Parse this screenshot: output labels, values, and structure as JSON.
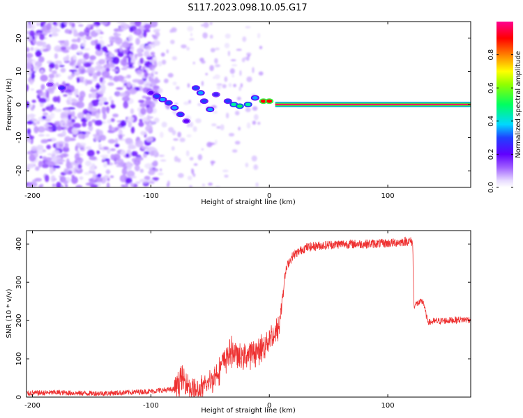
{
  "title": "S117.2023.098.10.05.G17",
  "chart_data": [
    {
      "type": "heatmap",
      "name": "spectrogram",
      "title": "S117.2023.098.10.05.G17",
      "xlabel": "Height of straight line (km)",
      "ylabel": "Frequency (Hz)",
      "xlim": [
        -205,
        170
      ],
      "ylim": [
        -25,
        25
      ],
      "xticks": [
        "-200",
        "-100",
        "0",
        "100"
      ],
      "xtick_values": [
        -200,
        -100,
        0,
        100
      ],
      "yticks": [
        "-20",
        "-10",
        "0",
        "10",
        "20"
      ],
      "ytick_values": [
        -20,
        -10,
        0,
        10,
        20
      ],
      "colorbar": {
        "label": "Normalized spectral amplitude",
        "ticks": [
          "0.0",
          "0.2",
          "0.4",
          "0.6",
          "0.8"
        ],
        "tick_values": [
          0.0,
          0.2,
          0.4,
          0.6,
          0.8
        ],
        "range": [
          0,
          1
        ]
      },
      "ridge_points": [
        {
          "x": -175,
          "f": 5,
          "a": 0.25
        },
        {
          "x": -185,
          "f": 6,
          "a": 0.15
        },
        {
          "x": -100,
          "f": 3.5,
          "a": 0.2
        },
        {
          "x": -95,
          "f": 2.5,
          "a": 0.3
        },
        {
          "x": -90,
          "f": 1.5,
          "a": 0.35
        },
        {
          "x": -85,
          "f": 0.5,
          "a": 0.3
        },
        {
          "x": -80,
          "f": -1,
          "a": 0.35
        },
        {
          "x": -75,
          "f": -3,
          "a": 0.3
        },
        {
          "x": -70,
          "f": -5,
          "a": 0.2
        },
        {
          "x": -62,
          "f": 5,
          "a": 0.3
        },
        {
          "x": -58,
          "f": 3.5,
          "a": 0.35
        },
        {
          "x": -55,
          "f": 1,
          "a": 0.3
        },
        {
          "x": -50,
          "f": -1.5,
          "a": 0.35
        },
        {
          "x": -45,
          "f": 3,
          "a": 0.25
        },
        {
          "x": -35,
          "f": 1,
          "a": 0.3
        },
        {
          "x": -30,
          "f": 0,
          "a": 0.45
        },
        {
          "x": -25,
          "f": -0.5,
          "a": 0.5
        },
        {
          "x": -18,
          "f": 0,
          "a": 0.45
        },
        {
          "x": -12,
          "f": 2,
          "a": 0.35
        },
        {
          "x": -5,
          "f": 1,
          "a": 0.9
        },
        {
          "x": 0,
          "f": 1,
          "a": 0.9
        }
      ],
      "carrier": {
        "x_start": 5,
        "x_end": 170,
        "f": 0,
        "a": 0.97
      }
    },
    {
      "type": "line",
      "name": "snr",
      "title": "",
      "xlabel": "Height of straight line (km)",
      "ylabel": "SNR (10 * v/v)",
      "xlim": [
        -205,
        170
      ],
      "ylim": [
        0,
        435
      ],
      "xticks": [
        "-200",
        "-100",
        "0",
        "100"
      ],
      "xtick_values": [
        -200,
        -100,
        0,
        100
      ],
      "yticks": [
        "0",
        "100",
        "200",
        "300",
        "400"
      ],
      "ytick_values": [
        0,
        100,
        200,
        300,
        400
      ],
      "color": "#ee3030",
      "series": [
        {
          "name": "SNR",
          "x": [
            -205,
            -180,
            -160,
            -140,
            -120,
            -100,
            -90,
            -80,
            -75,
            -70,
            -65,
            -60,
            -55,
            -50,
            -45,
            -40,
            -35,
            -30,
            -25,
            -20,
            -15,
            -10,
            -5,
            0,
            5,
            8,
            10,
            12,
            14,
            16,
            20,
            30,
            40,
            60,
            80,
            100,
            110,
            118,
            121,
            122,
            125,
            130,
            133,
            135,
            140,
            150,
            160,
            170
          ],
          "y": [
            10,
            12,
            10,
            10,
            12,
            15,
            18,
            20,
            45,
            40,
            20,
            10,
            25,
            40,
            60,
            85,
            110,
            120,
            100,
            110,
            115,
            120,
            130,
            155,
            165,
            180,
            230,
            290,
            330,
            350,
            370,
            390,
            395,
            400,
            400,
            402,
            405,
            408,
            405,
            240,
            245,
            250,
            205,
            195,
            198,
            200,
            202,
            203
          ]
        }
      ],
      "noise": {
        "low": 7,
        "rise": 45,
        "plateau": 12,
        "tail": 9
      }
    }
  ],
  "colors": {
    "axis": "#000000",
    "snr": "#ee3030",
    "colorbar": [
      "#ffffff",
      "#f0e6ff",
      "#b070ff",
      "#7000ff",
      "#2040ff",
      "#00d8ff",
      "#00ff40",
      "#d0ff00",
      "#ffd000",
      "#ff4000",
      "#ff0080"
    ]
  }
}
